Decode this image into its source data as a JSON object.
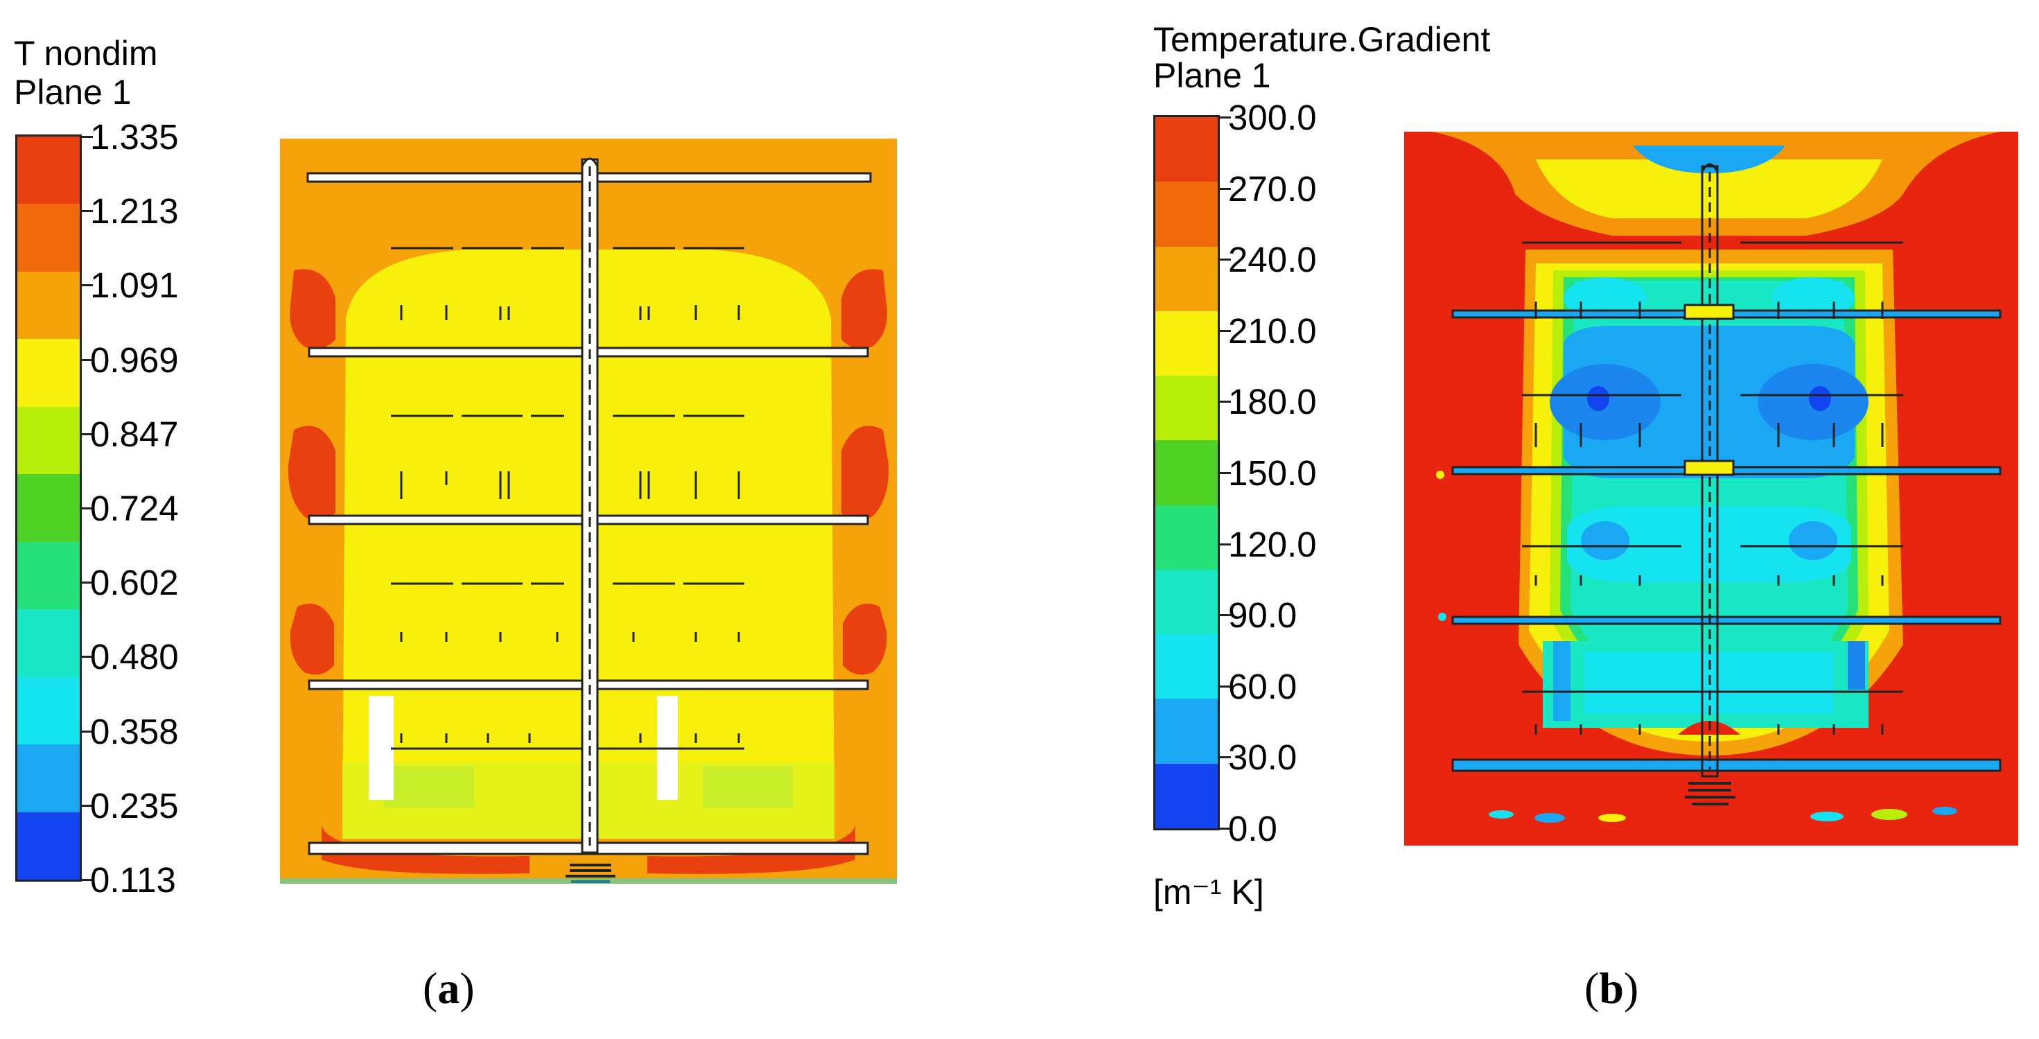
{
  "panels": [
    {
      "id": "a",
      "title_line1": "T nondim",
      "title_line2": "Plane 1",
      "levels": [
        "1.335",
        "1.213",
        "1.091",
        "0.969",
        "0.847",
        "0.724",
        "0.602",
        "0.480",
        "0.358",
        "0.235",
        "0.113"
      ],
      "unit": "",
      "caption_open": "(",
      "caption_letter": "a",
      "caption_close": ")"
    },
    {
      "id": "b",
      "title_line1": "Temperature.Gradient",
      "title_line2": "Plane 1",
      "levels": [
        "300.0",
        "270.0",
        "240.0",
        "210.0",
        "180.0",
        "150.0",
        "120.0",
        "90.0",
        "60.0",
        "30.0",
        "0.0"
      ],
      "unit": "[m⁻¹ K]",
      "caption_open": "(",
      "caption_letter": "b",
      "caption_close": ")"
    }
  ],
  "colormap": [
    "#e8410f",
    "#f06a0c",
    "#f6a20a",
    "#f7f00a",
    "#b9ee0a",
    "#4fd225",
    "#26e07a",
    "#19e6c2",
    "#16e3f0",
    "#1aa8f5",
    "#1144ee"
  ]
}
